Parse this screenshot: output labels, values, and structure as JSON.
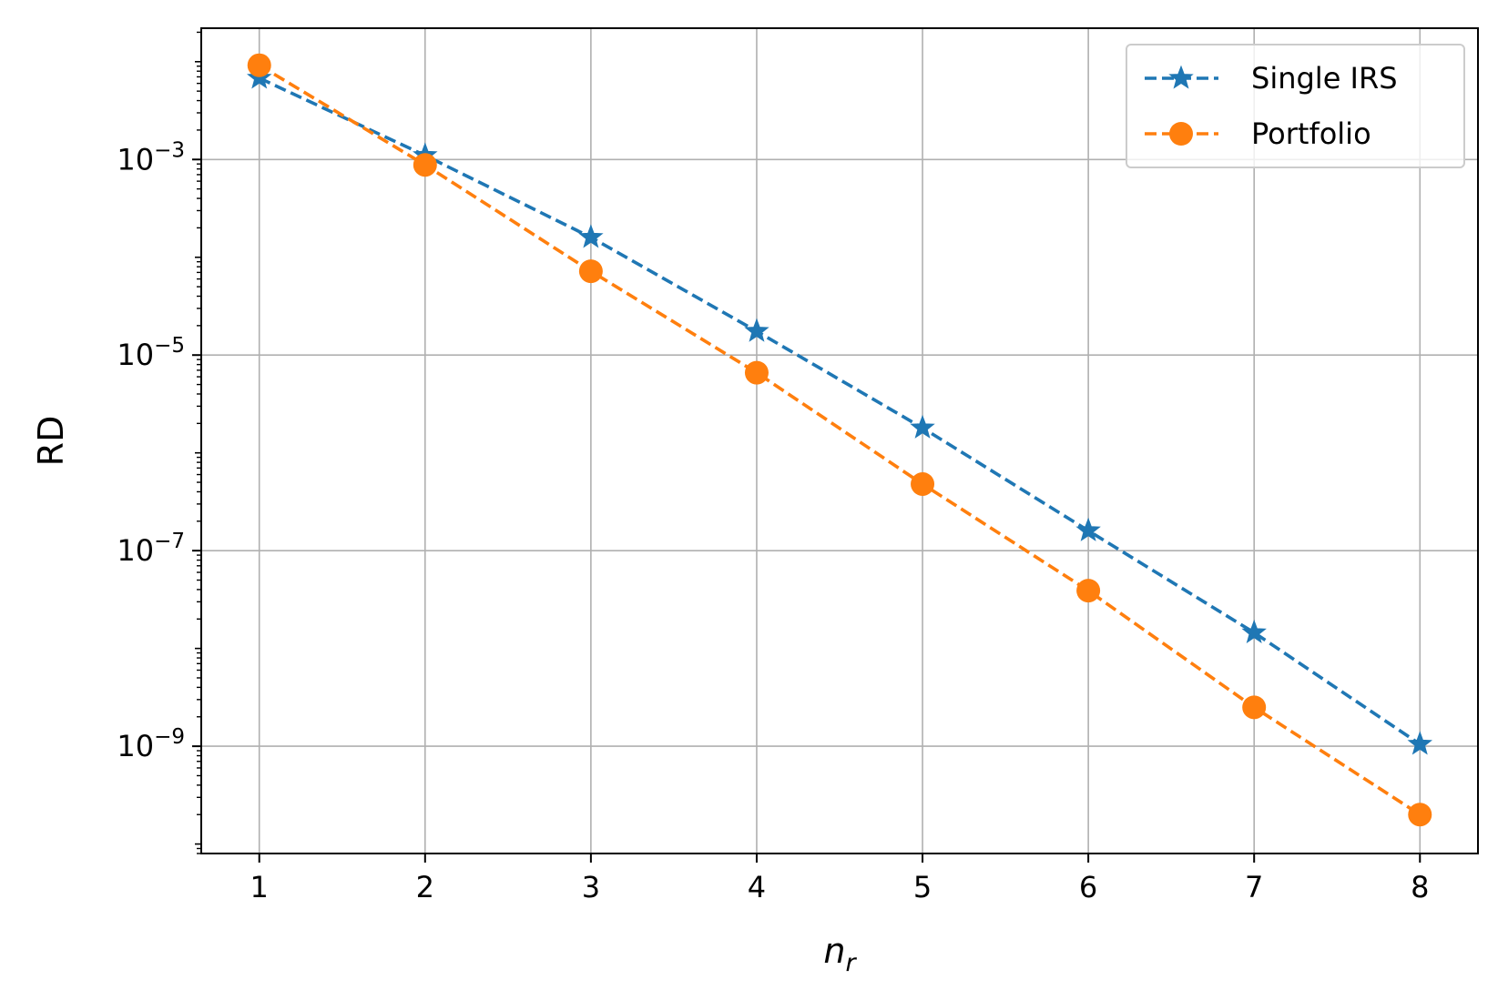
{
  "chart_data": {
    "type": "line",
    "title": "",
    "xlabel": "n_r",
    "xlabel_main": "n",
    "xlabel_sub": "r",
    "ylabel": "RD",
    "yscale": "log",
    "x": [
      1,
      2,
      3,
      4,
      5,
      6,
      7,
      8
    ],
    "xlim": [
      0.65,
      8.35
    ],
    "ylim": [
      8e-11,
      0.022
    ],
    "xticks": [
      "1",
      "2",
      "3",
      "4",
      "5",
      "6",
      "7",
      "8"
    ],
    "yticks": [
      {
        "base": "10",
        "exp": "−3",
        "value": 0.001
      },
      {
        "base": "10",
        "exp": "−5",
        "value": 1e-05
      },
      {
        "base": "10",
        "exp": "−7",
        "value": 1e-07
      },
      {
        "base": "10",
        "exp": "−9",
        "value": 1e-09
      }
    ],
    "grid": true,
    "legend_position": "top-right",
    "series": [
      {
        "name": "Single IRS",
        "color": "#1f77b4",
        "marker": "star",
        "linestyle": "dashed",
        "values": [
          0.0068,
          0.0011,
          0.00016,
          1.75e-05,
          1.8e-06,
          1.6e-07,
          1.45e-08,
          1.05e-09
        ]
      },
      {
        "name": "Portfolio",
        "color": "#ff7f0e",
        "marker": "circle",
        "linestyle": "dashed",
        "values": [
          0.0092,
          0.00088,
          7.2e-05,
          6.6e-06,
          4.8e-07,
          3.9e-08,
          2.5e-09,
          2e-10
        ]
      }
    ]
  }
}
